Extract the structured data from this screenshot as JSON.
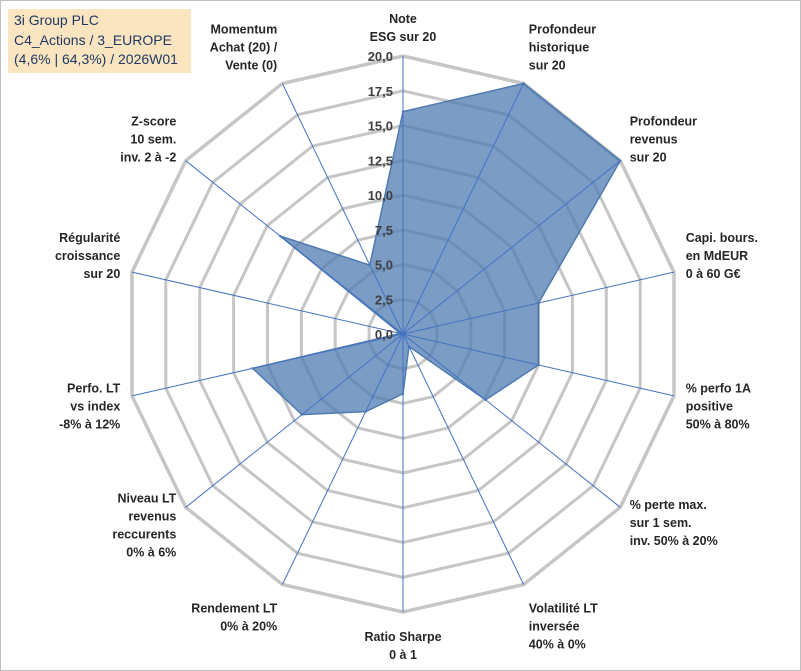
{
  "title": {
    "line1": "3i Group PLC",
    "line2": "C4_Actions / 3_EUROPE",
    "line3": "(4,6% | 64,3%) / 2026W01"
  },
  "chart_data": {
    "type": "radar",
    "rmin": 0,
    "rmax": 20,
    "tick_values": [
      0,
      2.5,
      5,
      7.5,
      10,
      12.5,
      15,
      17.5,
      20
    ],
    "tick_labels": [
      "0,0",
      "2,5",
      "5,0",
      "7,5",
      "10,0",
      "12,5",
      "15,0",
      "17,5",
      "20,0"
    ],
    "gridline_values": [
      2.5,
      5,
      7.5,
      10,
      12.5,
      15,
      17.5,
      20
    ],
    "axes": [
      [
        "Note",
        "ESG sur 20"
      ],
      [
        "Profondeur",
        "historique",
        "sur 20"
      ],
      [
        "Profondeur",
        "revenus",
        "sur 20"
      ],
      [
        "Capi. bours.",
        "en MdEUR",
        "0 à 60 G€"
      ],
      [
        "% perfo 1A",
        "positive",
        "50% à 80%"
      ],
      [
        "% perte max.",
        "sur 1 sem.",
        "inv. 50% à 20%"
      ],
      [
        "Volatilité LT",
        "inversée",
        "40% à 0%"
      ],
      [
        "Ratio Sharpe",
        "0 à 1"
      ],
      [
        "Rendement LT",
        "0% à 20%"
      ],
      [
        "Niveau LT",
        "revenus",
        "reccurents",
        "0% à 6%"
      ],
      [
        "Perfo. LT",
        "vs index",
        "-8% à 12%"
      ],
      [
        "Régularité",
        "croissance",
        "sur 20"
      ],
      [
        "Z-score",
        "10 sem.",
        "inv. 2 à -2"
      ],
      [
        "Momentum",
        "Achat (20) /",
        "Vente (0)"
      ]
    ],
    "series": [
      {
        "name": "3i Group PLC",
        "values": [
          16.0,
          20.0,
          20.0,
          10.0,
          10.0,
          7.6,
          1.0,
          4.3,
          6.2,
          9.3,
          11.1,
          0.2,
          11.3,
          5.5
        ]
      }
    ],
    "colors": {
      "fill": "#4f7bb0",
      "fill_opacity": 0.75,
      "stroke": "#4f7bb0",
      "grid": "#c6c6c6",
      "spoke": "#4472c4"
    }
  }
}
